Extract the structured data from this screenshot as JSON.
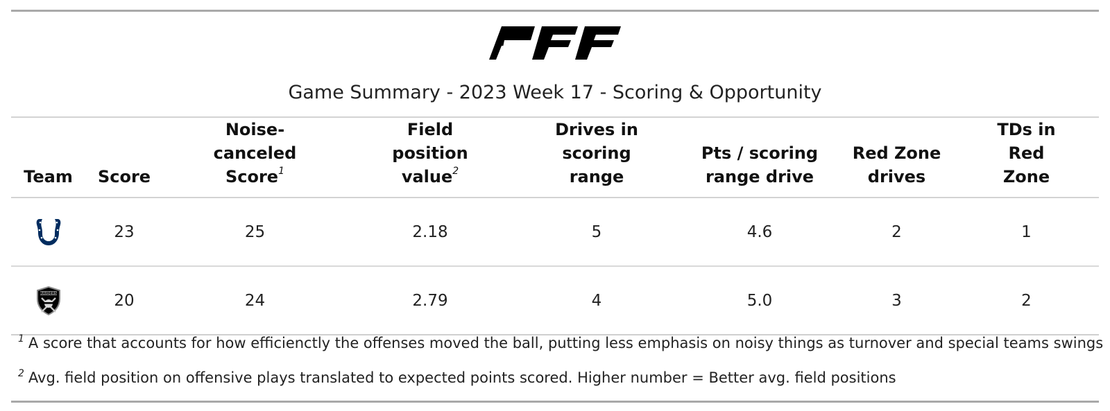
{
  "brand": "PFF",
  "title": "Game Summary - 2023 Week 17 - Scoring & Opportunity",
  "columns": [
    {
      "label": "Team",
      "note": ""
    },
    {
      "label": "Score",
      "note": ""
    },
    {
      "label": "Noise-canceled Score",
      "note": "1"
    },
    {
      "label": "Field position value",
      "note": "2"
    },
    {
      "label": "Drives in scoring range",
      "note": ""
    },
    {
      "label": "Pts / scoring range drive",
      "note": ""
    },
    {
      "label": "Red Zone drives",
      "note": ""
    },
    {
      "label": "TDs in Red Zone",
      "note": ""
    }
  ],
  "header": {
    "team": "Team",
    "score": "Score",
    "noise_canceled": "Noise-canceled Score",
    "field_position": "Field position value",
    "drives_scoring_range": "Drives in scoring range",
    "pts_per_drive": "Pts / scoring range drive",
    "red_zone_drives": "Red Zone drives",
    "tds_red_zone": "TDs in Red Zone",
    "note_1": "1",
    "note_2": "2"
  },
  "rows": [
    {
      "team_icon": "colts-horseshoe-icon",
      "team_color": "#002C5F",
      "score": "23",
      "noise_canceled": "25",
      "field_position": "2.18",
      "drives_scoring_range": "5",
      "pts_per_drive": "4.6",
      "red_zone_drives": "2",
      "tds_red_zone": "1"
    },
    {
      "team_icon": "raiders-shield-icon",
      "team_color": "#000000",
      "logo_text": "RAIDERS",
      "score": "20",
      "noise_canceled": "24",
      "field_position": "2.79",
      "drives_scoring_range": "4",
      "pts_per_drive": "5.0",
      "red_zone_drives": "3",
      "tds_red_zone": "2"
    }
  ],
  "footnotes": [
    {
      "mark": "1",
      "text": "A score that accounts for how efficienctly the offenses moved the ball, putting less emphasis on noisy things as turnover and special teams swings"
    },
    {
      "mark": "2",
      "text": "Avg. field position on offensive plays translated to expected points scored. Higher number = Better avg. field positions"
    }
  ],
  "colors": {
    "rule": "#a9a9a9",
    "row_divider": "#d9d9d9",
    "text": "#222222"
  }
}
